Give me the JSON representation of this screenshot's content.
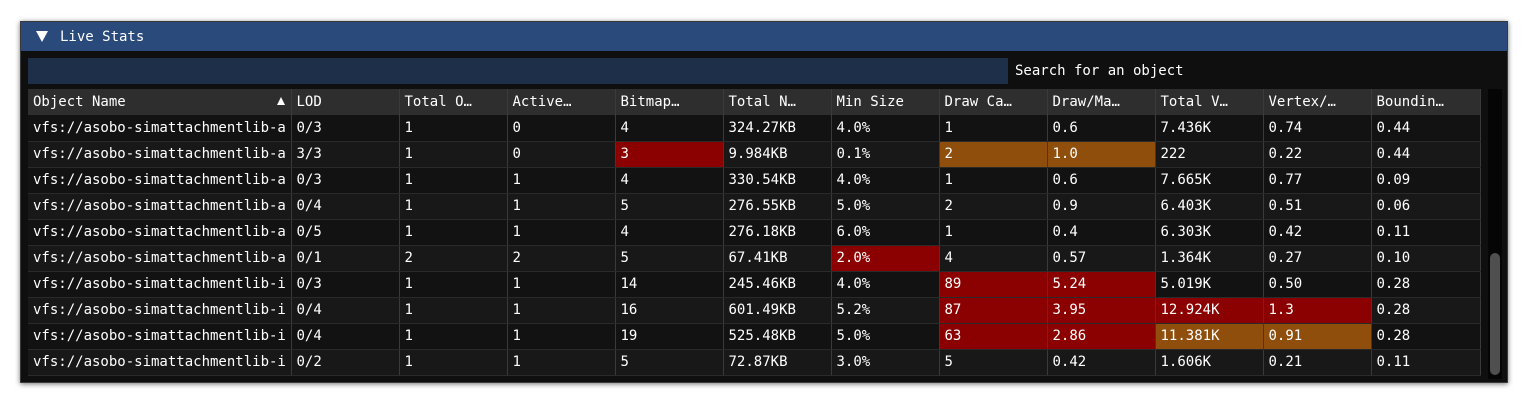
{
  "window": {
    "title": "Live Stats"
  },
  "search": {
    "value": "",
    "label": "Search for an object"
  },
  "columns": [
    {
      "label": "Object Name",
      "width": 263
    },
    {
      "label": "LOD",
      "width": 108
    },
    {
      "label": "Total O…",
      "width": 108
    },
    {
      "label": "Active…",
      "width": 108
    },
    {
      "label": "Bitmap…",
      "width": 108
    },
    {
      "label": "Total N…",
      "width": 108
    },
    {
      "label": "Min Size",
      "width": 108
    },
    {
      "label": "Draw Ca…",
      "width": 108
    },
    {
      "label": "Draw/Ma…",
      "width": 108
    },
    {
      "label": "Total V…",
      "width": 108
    },
    {
      "label": "Vertex/…",
      "width": 108
    },
    {
      "label": "Boundin…",
      "width": 109
    }
  ],
  "rows": [
    {
      "cells": [
        "vfs://asobo-simattachmentlib-a",
        "0/3",
        "1",
        "0",
        "4",
        "324.27KB",
        "4.0%",
        "1",
        "0.6",
        "7.436K",
        "0.74",
        "0.44"
      ],
      "highlights": {}
    },
    {
      "cells": [
        "vfs://asobo-simattachmentlib-a",
        "3/3",
        "1",
        "0",
        "3",
        "9.984KB",
        "0.1%",
        "2",
        "1.0",
        "222",
        "0.22",
        "0.44"
      ],
      "highlights": {
        "4": "red",
        "7": "orange",
        "8": "orange"
      }
    },
    {
      "cells": [
        "vfs://asobo-simattachmentlib-a",
        "0/3",
        "1",
        "1",
        "4",
        "330.54KB",
        "4.0%",
        "1",
        "0.6",
        "7.665K",
        "0.77",
        "0.09"
      ],
      "highlights": {}
    },
    {
      "cells": [
        "vfs://asobo-simattachmentlib-a",
        "0/4",
        "1",
        "1",
        "5",
        "276.55KB",
        "5.0%",
        "2",
        "0.9",
        "6.403K",
        "0.51",
        "0.06"
      ],
      "highlights": {}
    },
    {
      "cells": [
        "vfs://asobo-simattachmentlib-a",
        "0/5",
        "1",
        "1",
        "4",
        "276.18KB",
        "6.0%",
        "1",
        "0.4",
        "6.303K",
        "0.42",
        "0.11"
      ],
      "highlights": {}
    },
    {
      "cells": [
        "vfs://asobo-simattachmentlib-a",
        "0/1",
        "2",
        "2",
        "5",
        "67.41KB",
        "2.0%",
        "4",
        "0.57",
        "1.364K",
        "0.27",
        "0.10"
      ],
      "highlights": {
        "6": "red"
      }
    },
    {
      "cells": [
        "vfs://asobo-simattachmentlib-i",
        "0/3",
        "1",
        "1",
        "14",
        "245.46KB",
        "4.0%",
        "89",
        "5.24",
        "5.019K",
        "0.50",
        "0.28"
      ],
      "highlights": {
        "7": "red",
        "8": "red"
      }
    },
    {
      "cells": [
        "vfs://asobo-simattachmentlib-i",
        "0/4",
        "1",
        "1",
        "16",
        "601.49KB",
        "5.2%",
        "87",
        "3.95",
        "12.924K",
        "1.3",
        "0.28"
      ],
      "highlights": {
        "7": "red",
        "8": "red",
        "9": "red",
        "10": "red"
      }
    },
    {
      "cells": [
        "vfs://asobo-simattachmentlib-i",
        "0/4",
        "1",
        "1",
        "19",
        "525.48KB",
        "5.0%",
        "63",
        "2.86",
        "11.381K",
        "0.91",
        "0.28"
      ],
      "highlights": {
        "7": "red",
        "8": "red",
        "9": "orange",
        "10": "orange"
      }
    },
    {
      "cells": [
        "vfs://asobo-simattachmentlib-i",
        "0/2",
        "1",
        "1",
        "5",
        "72.87KB",
        "3.0%",
        "5",
        "0.42",
        "1.606K",
        "0.21",
        "0.11"
      ],
      "highlights": {}
    }
  ],
  "sort": {
    "column": 0,
    "direction": "ascending"
  },
  "icons": {
    "collapse": "triangle-down-icon",
    "sort": "sort-ascending-icon"
  },
  "colors": {
    "title_bar": "#294a7a",
    "search_bg": "#1d2f49",
    "highlight_red": "#8b0000",
    "highlight_orange": "#8f4e0c"
  }
}
